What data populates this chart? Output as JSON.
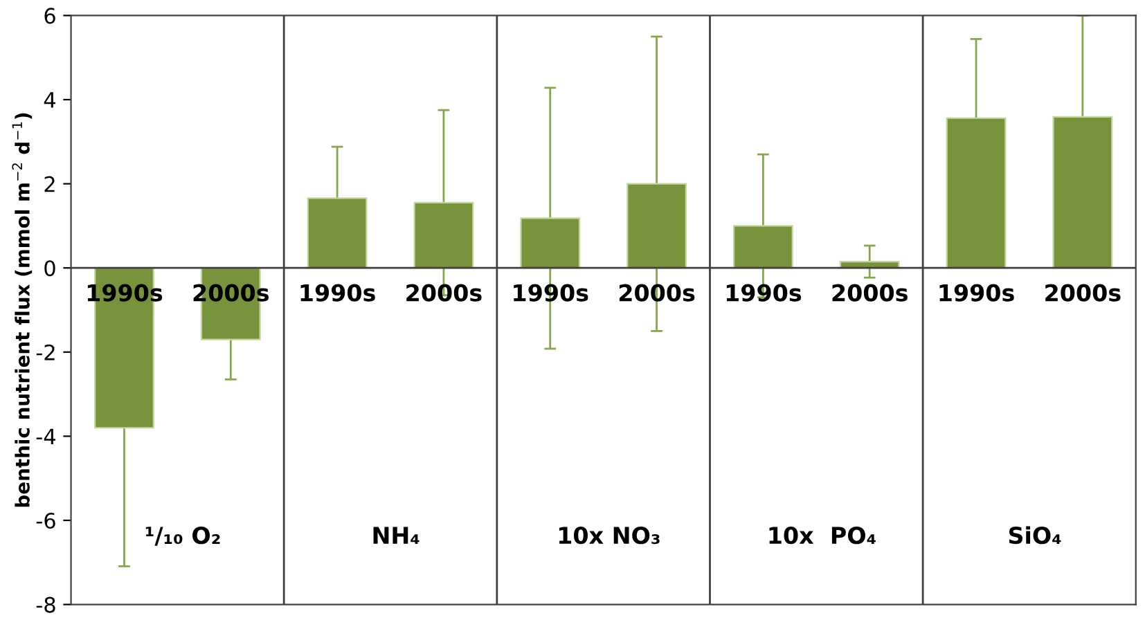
{
  "chart_data": {
    "type": "bar",
    "ylabel": "benthic nutrient flux (mmol m$^{−2}$ d$^{−1}$)",
    "categories": [
      "1990s",
      "2000s",
      "1990s",
      "2000s",
      "1990s",
      "2000s",
      "1990s",
      "2000s",
      "1990s",
      "2000s"
    ],
    "values": [
      -3.8,
      -1.7,
      1.66,
      1.55,
      1.18,
      2.0,
      1.0,
      0.15,
      3.56,
      3.59
    ],
    "errors": [
      3.29,
      0.95,
      1.22,
      2.2,
      3.1,
      3.5,
      1.7,
      0.38,
      1.88,
      2.41
    ],
    "color": "#77933c",
    "ylim": [
      -8,
      6
    ],
    "yticks": [
      -8,
      -6,
      -4,
      -2,
      0,
      2,
      4,
      6
    ],
    "grid": false,
    "legend": false,
    "annotations": [
      "¹/₁₀ O₂",
      "NH₄",
      "10x NO₃",
      "10x  PO₄",
      "SiO₄"
    ]
  }
}
